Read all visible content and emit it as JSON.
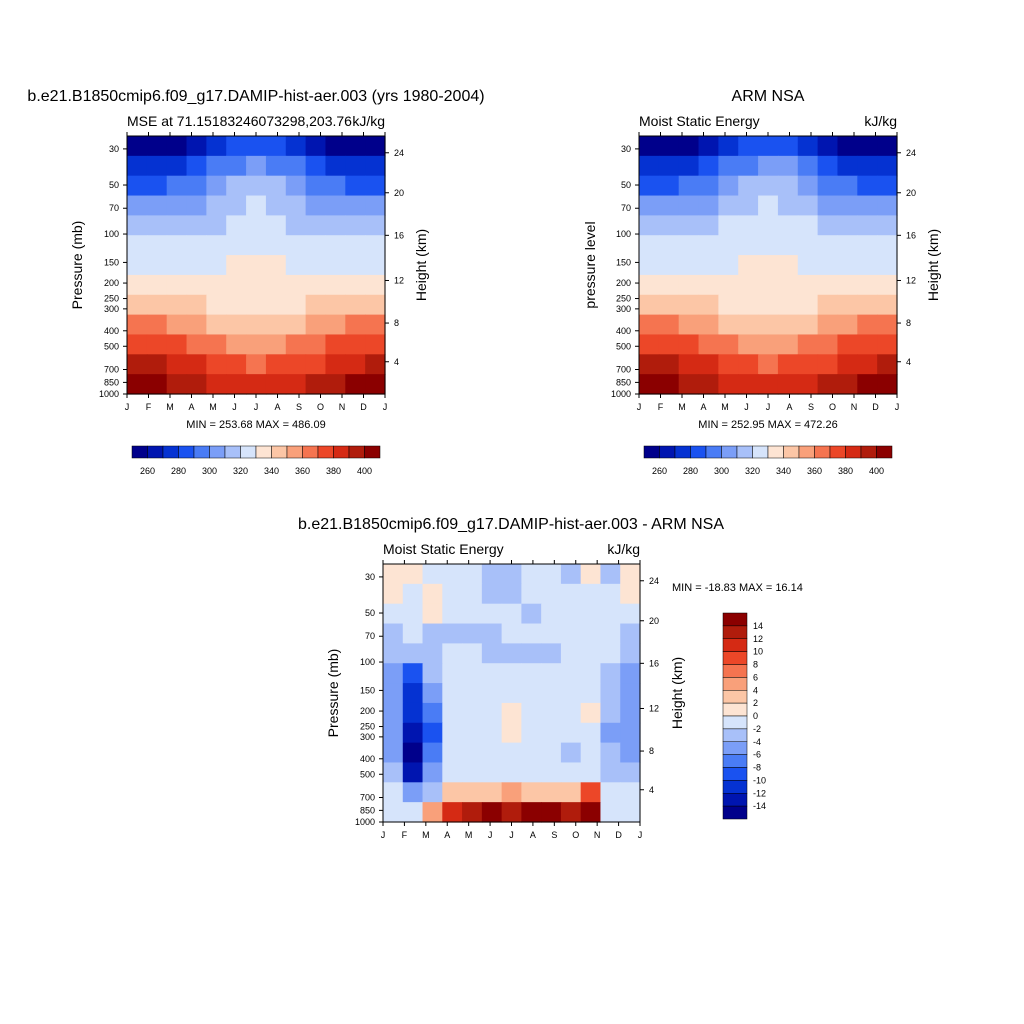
{
  "chart_data": [
    {
      "type": "heatmap",
      "panel": "model",
      "title": "b.e21.B1850cmip6.f09_g17.DAMIP-hist-aer.003 (yrs 1980-2004)",
      "subtitle_left": "MSE at 71.15183246073298,203.76",
      "subtitle_right": "kJ/kg",
      "ylabel": "Pressure (mb)",
      "ylabel_right": "Height (km)",
      "x": [
        "J",
        "F",
        "M",
        "A",
        "M",
        "J",
        "J",
        "A",
        "S",
        "O",
        "N",
        "D",
        "J"
      ],
      "y_ticks": [
        "30",
        "50",
        "70",
        "100",
        "150",
        "200",
        "250",
        "300",
        "400",
        "500",
        "700",
        "850",
        "1000"
      ],
      "y_right_ticks": [
        "24",
        "20",
        "16",
        "12",
        "8",
        "4"
      ],
      "levels": [
        260,
        270,
        280,
        290,
        300,
        310,
        320,
        330,
        340,
        350,
        360,
        370,
        380,
        390,
        400
      ],
      "colorbar_labels": [
        "260",
        "280",
        "300",
        "320",
        "340",
        "360",
        "380",
        "400"
      ],
      "stats": "MIN = 253.68 MAX = 486.09",
      "values": [
        [
          256,
          256,
          258,
          263,
          272,
          283,
          288,
          283,
          272,
          263,
          258,
          256,
          256
        ],
        [
          272,
          271,
          275,
          282,
          290,
          298,
          303,
          298,
          290,
          282,
          275,
          272,
          272
        ],
        [
          288,
          287,
          290,
          296,
          303,
          310,
          315,
          311,
          303,
          296,
          290,
          288,
          288
        ],
        [
          301,
          301,
          303,
          307,
          312,
          317,
          320,
          317,
          312,
          307,
          303,
          301,
          301
        ],
        [
          312,
          312,
          313,
          316,
          319,
          322,
          324,
          322,
          319,
          316,
          313,
          312,
          312
        ],
        [
          320,
          320,
          321,
          322,
          324,
          326,
          328,
          326,
          324,
          322,
          321,
          320,
          320
        ],
        [
          326,
          326,
          326,
          327,
          328,
          330,
          331,
          330,
          328,
          327,
          326,
          326,
          326
        ],
        [
          331,
          330,
          330,
          330,
          330,
          331,
          332,
          331,
          330,
          330,
          330,
          330,
          331
        ],
        [
          346,
          345,
          343,
          340,
          338,
          337,
          337,
          337,
          338,
          340,
          342,
          344,
          346
        ],
        [
          362,
          361,
          358,
          353,
          349,
          347,
          346,
          347,
          349,
          353,
          357,
          360,
          362
        ],
        [
          378,
          377,
          373,
          367,
          361,
          358,
          357,
          358,
          361,
          366,
          371,
          375,
          378
        ],
        [
          392,
          391,
          387,
          380,
          374,
          370,
          369,
          370,
          374,
          379,
          384,
          389,
          392
        ],
        [
          403,
          401,
          398,
          391,
          385,
          381,
          380,
          381,
          385,
          390,
          396,
          400,
          403
        ]
      ]
    },
    {
      "type": "heatmap",
      "panel": "obs",
      "title": "ARM NSA",
      "subtitle_left": "Moist Static Energy",
      "subtitle_right": "kJ/kg",
      "ylabel": "pressure level",
      "ylabel_right": "Height (km)",
      "x": [
        "J",
        "F",
        "M",
        "A",
        "M",
        "J",
        "J",
        "A",
        "S",
        "O",
        "N",
        "D",
        "J"
      ],
      "y_ticks": [
        "30",
        "50",
        "70",
        "100",
        "150",
        "200",
        "250",
        "300",
        "400",
        "500",
        "700",
        "850",
        "1000"
      ],
      "y_right_ticks": [
        "24",
        "20",
        "16",
        "12",
        "8",
        "4"
      ],
      "levels": [
        260,
        270,
        280,
        290,
        300,
        310,
        320,
        330,
        340,
        350,
        360,
        370,
        380,
        390,
        400
      ],
      "colorbar_labels": [
        "260",
        "280",
        "300",
        "320",
        "340",
        "360",
        "380",
        "400"
      ],
      "stats": "MIN = 252.95 MAX = 472.26",
      "values": [
        [
          256,
          256,
          257,
          262,
          271,
          282,
          289,
          284,
          272,
          263,
          258,
          256,
          256
        ],
        [
          271,
          271,
          274,
          281,
          290,
          299,
          305,
          300,
          290,
          281,
          275,
          272,
          271
        ],
        [
          287,
          287,
          290,
          296,
          303,
          311,
          316,
          312,
          304,
          296,
          291,
          288,
          287
        ],
        [
          301,
          301,
          303,
          307,
          312,
          318,
          321,
          318,
          313,
          307,
          303,
          301,
          301
        ],
        [
          312,
          312,
          313,
          316,
          320,
          323,
          325,
          323,
          320,
          316,
          313,
          312,
          312
        ],
        [
          320,
          320,
          321,
          323,
          325,
          327,
          328,
          327,
          325,
          323,
          321,
          320,
          320
        ],
        [
          326,
          326,
          326,
          327,
          329,
          330,
          331,
          330,
          329,
          327,
          326,
          326,
          326
        ],
        [
          331,
          330,
          330,
          330,
          331,
          331,
          332,
          331,
          330,
          330,
          330,
          330,
          331
        ],
        [
          346,
          345,
          343,
          340,
          338,
          337,
          337,
          337,
          338,
          340,
          342,
          344,
          346
        ],
        [
          362,
          361,
          358,
          353,
          349,
          347,
          346,
          347,
          349,
          353,
          357,
          360,
          362
        ],
        [
          378,
          377,
          373,
          367,
          361,
          358,
          357,
          358,
          361,
          366,
          371,
          375,
          378
        ],
        [
          392,
          391,
          387,
          380,
          374,
          370,
          369,
          370,
          374,
          379,
          384,
          389,
          392
        ],
        [
          403,
          401,
          398,
          391,
          385,
          381,
          380,
          381,
          385,
          390,
          396,
          400,
          403
        ]
      ]
    },
    {
      "type": "heatmap",
      "panel": "diff",
      "title": "b.e21.B1850cmip6.f09_g17.DAMIP-hist-aer.003 - ARM NSA",
      "subtitle_left": "Moist Static Energy",
      "subtitle_right": "kJ/kg",
      "ylabel": "Pressure (mb)",
      "ylabel_right": "Height (km)",
      "x": [
        "J",
        "F",
        "M",
        "A",
        "M",
        "J",
        "J",
        "A",
        "S",
        "O",
        "N",
        "D",
        "J"
      ],
      "y_ticks": [
        "30",
        "50",
        "70",
        "100",
        "150",
        "200",
        "250",
        "300",
        "400",
        "500",
        "700",
        "850",
        "1000"
      ],
      "y_right_ticks": [
        "24",
        "20",
        "16",
        "12",
        "8",
        "4"
      ],
      "levels": [
        -14,
        -12,
        -10,
        -8,
        -6,
        -4,
        -2,
        0,
        2,
        4,
        6,
        8,
        10,
        12,
        14
      ],
      "colorbar_labels": [
        "14",
        "12",
        "10",
        "8",
        "6",
        "4",
        "2",
        "0",
        "-2",
        "-4",
        "-6",
        "-8",
        "-10",
        "-12",
        "-14"
      ],
      "stats": "MIN = -18.83 MAX =  16.14",
      "values": [
        [
          1,
          1,
          -1,
          -2,
          -2,
          -4,
          -4,
          -1,
          -1,
          -3,
          1,
          -3,
          1
        ],
        [
          1,
          -1,
          1,
          -1,
          -2,
          -4,
          -4,
          -1,
          -1,
          -2,
          -1,
          -1,
          1
        ],
        [
          -2,
          -2,
          1,
          -1,
          -1,
          -2,
          -2,
          -3,
          -2,
          -1,
          -1,
          -2,
          -2
        ],
        [
          -3,
          -2,
          -3,
          -3,
          -3,
          -3,
          -2,
          -2,
          -2,
          -2,
          -1,
          -2,
          -3
        ],
        [
          -4,
          -4,
          -3,
          -1,
          -1,
          -3,
          -3,
          -3,
          -3,
          -2,
          -1,
          -2,
          -4
        ],
        [
          -6,
          -10,
          -4,
          -2,
          -1,
          -1,
          -1,
          -1,
          -1,
          -1,
          -1,
          -3,
          -6
        ],
        [
          -6,
          -12,
          -6,
          -2,
          -1,
          -1,
          -1,
          -2,
          -1,
          -1,
          -1,
          -4,
          -6
        ],
        [
          -6,
          -12,
          -7,
          -2,
          -1,
          -1,
          1,
          -1,
          -1,
          -1,
          1,
          -4,
          -6
        ],
        [
          -6,
          -13,
          -9,
          -2,
          -1,
          -1,
          1,
          -1,
          -1,
          -1,
          -1,
          -5,
          -6
        ],
        [
          -6,
          -16,
          -8,
          -2,
          -1,
          -1,
          -1,
          -1,
          -1,
          -3,
          -1,
          -4,
          -6
        ],
        [
          -4,
          -13,
          -6,
          -1,
          -1,
          -1,
          -1,
          -1,
          -1,
          -1,
          -1,
          -3,
          -4
        ],
        [
          -2,
          -5,
          -3,
          3,
          3,
          3,
          4,
          2,
          2,
          3,
          8,
          -2,
          -2
        ],
        [
          -1,
          -1,
          5,
          11,
          13,
          14,
          13,
          14,
          14,
          13,
          15,
          -1,
          -1
        ]
      ]
    }
  ]
}
